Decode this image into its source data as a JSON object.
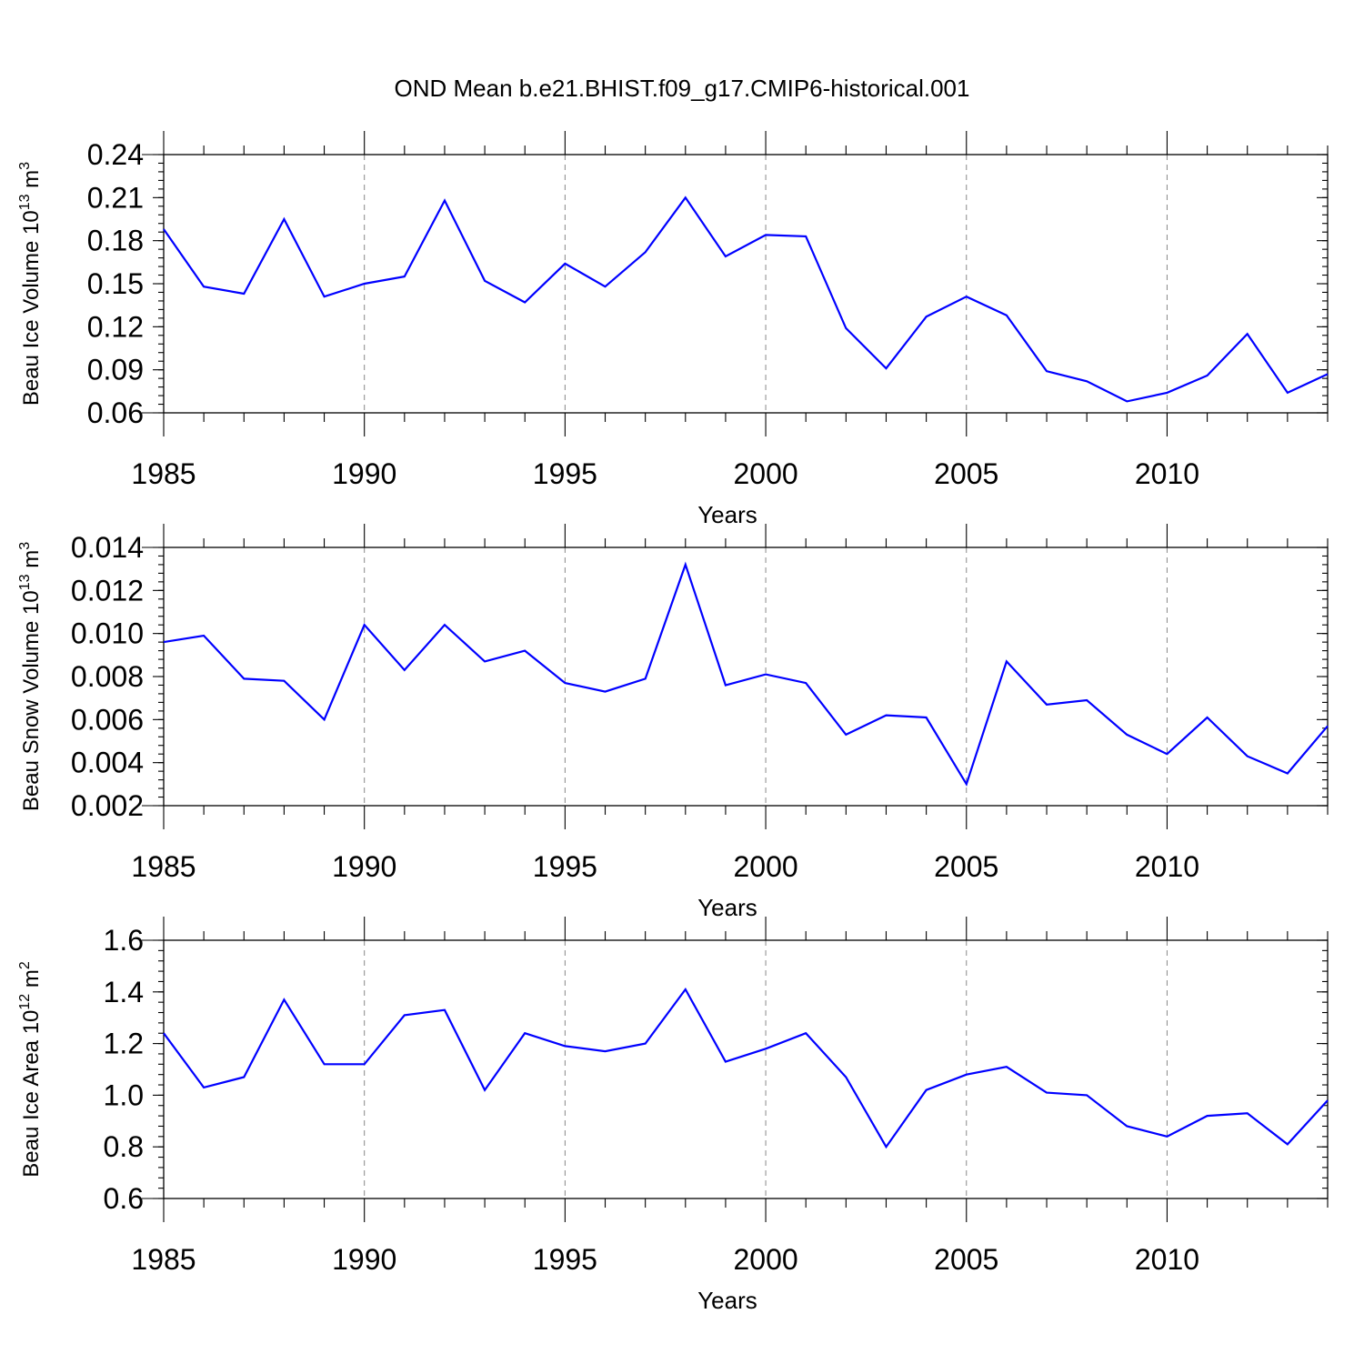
{
  "title": "OND Mean b.e21.BHIST.f09_g17.CMIP6-historical.001",
  "chart_data": [
    {
      "type": "line",
      "ylabel": "Beau Ice Volume 10",
      "ylabel_exp": "13",
      "ylabel_unit": "m",
      "ylabel_unit_exp": "3",
      "xlabel": "Years",
      "xlim": [
        1985,
        2014
      ],
      "ylim": [
        0.06,
        0.24
      ],
      "x_ticks": [
        1985,
        1990,
        1995,
        2000,
        2005,
        2010
      ],
      "x_tick_labels": [
        "1985",
        "1990",
        "1995",
        "2000",
        "2005",
        "2010"
      ],
      "y_ticks": [
        0.06,
        0.09,
        0.12,
        0.15,
        0.18,
        0.21,
        0.24
      ],
      "y_tick_labels": [
        "0.06",
        "0.09",
        "0.12",
        "0.15",
        "0.18",
        "0.21",
        "0.24"
      ],
      "y_minor_step": 0.006,
      "grid": "vertical dashed at major x ticks",
      "color": "#0000ff",
      "x": [
        1985,
        1986,
        1987,
        1988,
        1989,
        1990,
        1991,
        1992,
        1993,
        1994,
        1995,
        1996,
        1997,
        1998,
        1999,
        2000,
        2001,
        2002,
        2003,
        2004,
        2005,
        2006,
        2007,
        2008,
        2009,
        2010,
        2011,
        2012,
        2013,
        2014
      ],
      "values": [
        0.188,
        0.148,
        0.143,
        0.195,
        0.141,
        0.15,
        0.155,
        0.208,
        0.152,
        0.137,
        0.164,
        0.148,
        0.172,
        0.21,
        0.169,
        0.184,
        0.183,
        0.119,
        0.091,
        0.127,
        0.141,
        0.128,
        0.089,
        0.082,
        0.068,
        0.074,
        0.086,
        0.115,
        0.074,
        0.087
      ]
    },
    {
      "type": "line",
      "ylabel": "Beau Snow Volume 10",
      "ylabel_exp": "13",
      "ylabel_unit": "m",
      "ylabel_unit_exp": "3",
      "xlabel": "Years",
      "xlim": [
        1985,
        2014
      ],
      "ylim": [
        0.002,
        0.014
      ],
      "x_ticks": [
        1985,
        1990,
        1995,
        2000,
        2005,
        2010
      ],
      "x_tick_labels": [
        "1985",
        "1990",
        "1995",
        "2000",
        "2005",
        "2010"
      ],
      "y_ticks": [
        0.002,
        0.004,
        0.006,
        0.008,
        0.01,
        0.012,
        0.014
      ],
      "y_tick_labels": [
        "0.002",
        "0.004",
        "0.006",
        "0.008",
        "0.010",
        "0.012",
        "0.014"
      ],
      "y_minor_step": 0.0004,
      "grid": "vertical dashed at major x ticks",
      "color": "#0000ff",
      "x": [
        1985,
        1986,
        1987,
        1988,
        1989,
        1990,
        1991,
        1992,
        1993,
        1994,
        1995,
        1996,
        1997,
        1998,
        1999,
        2000,
        2001,
        2002,
        2003,
        2004,
        2005,
        2006,
        2007,
        2008,
        2009,
        2010,
        2011,
        2012,
        2013,
        2014
      ],
      "values": [
        0.0096,
        0.0099,
        0.0079,
        0.0078,
        0.006,
        0.0104,
        0.0083,
        0.0104,
        0.0087,
        0.0092,
        0.0077,
        0.0073,
        0.0079,
        0.0132,
        0.0076,
        0.0081,
        0.0077,
        0.0053,
        0.0062,
        0.0061,
        0.003,
        0.0087,
        0.0067,
        0.0069,
        0.0053,
        0.0044,
        0.0061,
        0.0043,
        0.0035,
        0.0057
      ]
    },
    {
      "type": "line",
      "ylabel": "Beau Ice Area 10",
      "ylabel_exp": "12",
      "ylabel_unit": "m",
      "ylabel_unit_exp": "2",
      "xlabel": "Years",
      "xlim": [
        1985,
        2014
      ],
      "ylim": [
        0.6,
        1.6
      ],
      "x_ticks": [
        1985,
        1990,
        1995,
        2000,
        2005,
        2010
      ],
      "x_tick_labels": [
        "1985",
        "1990",
        "1995",
        "2000",
        "2005",
        "2010"
      ],
      "y_ticks": [
        0.6,
        0.8,
        1.0,
        1.2,
        1.4,
        1.6
      ],
      "y_tick_labels": [
        "0.6",
        "0.8",
        "1.0",
        "1.2",
        "1.4",
        "1.6"
      ],
      "y_minor_step": 0.04,
      "grid": "vertical dashed at major x ticks",
      "color": "#0000ff",
      "x": [
        1985,
        1986,
        1987,
        1988,
        1989,
        1990,
        1991,
        1992,
        1993,
        1994,
        1995,
        1996,
        1997,
        1998,
        1999,
        2000,
        2001,
        2002,
        2003,
        2004,
        2005,
        2006,
        2007,
        2008,
        2009,
        2010,
        2011,
        2012,
        2013,
        2014
      ],
      "values": [
        1.24,
        1.03,
        1.07,
        1.37,
        1.12,
        1.12,
        1.31,
        1.33,
        1.02,
        1.24,
        1.19,
        1.17,
        1.2,
        1.41,
        1.13,
        1.18,
        1.24,
        1.07,
        0.8,
        1.02,
        1.08,
        1.11,
        1.01,
        1.0,
        0.88,
        0.84,
        0.92,
        0.93,
        0.81,
        0.98
      ]
    }
  ]
}
